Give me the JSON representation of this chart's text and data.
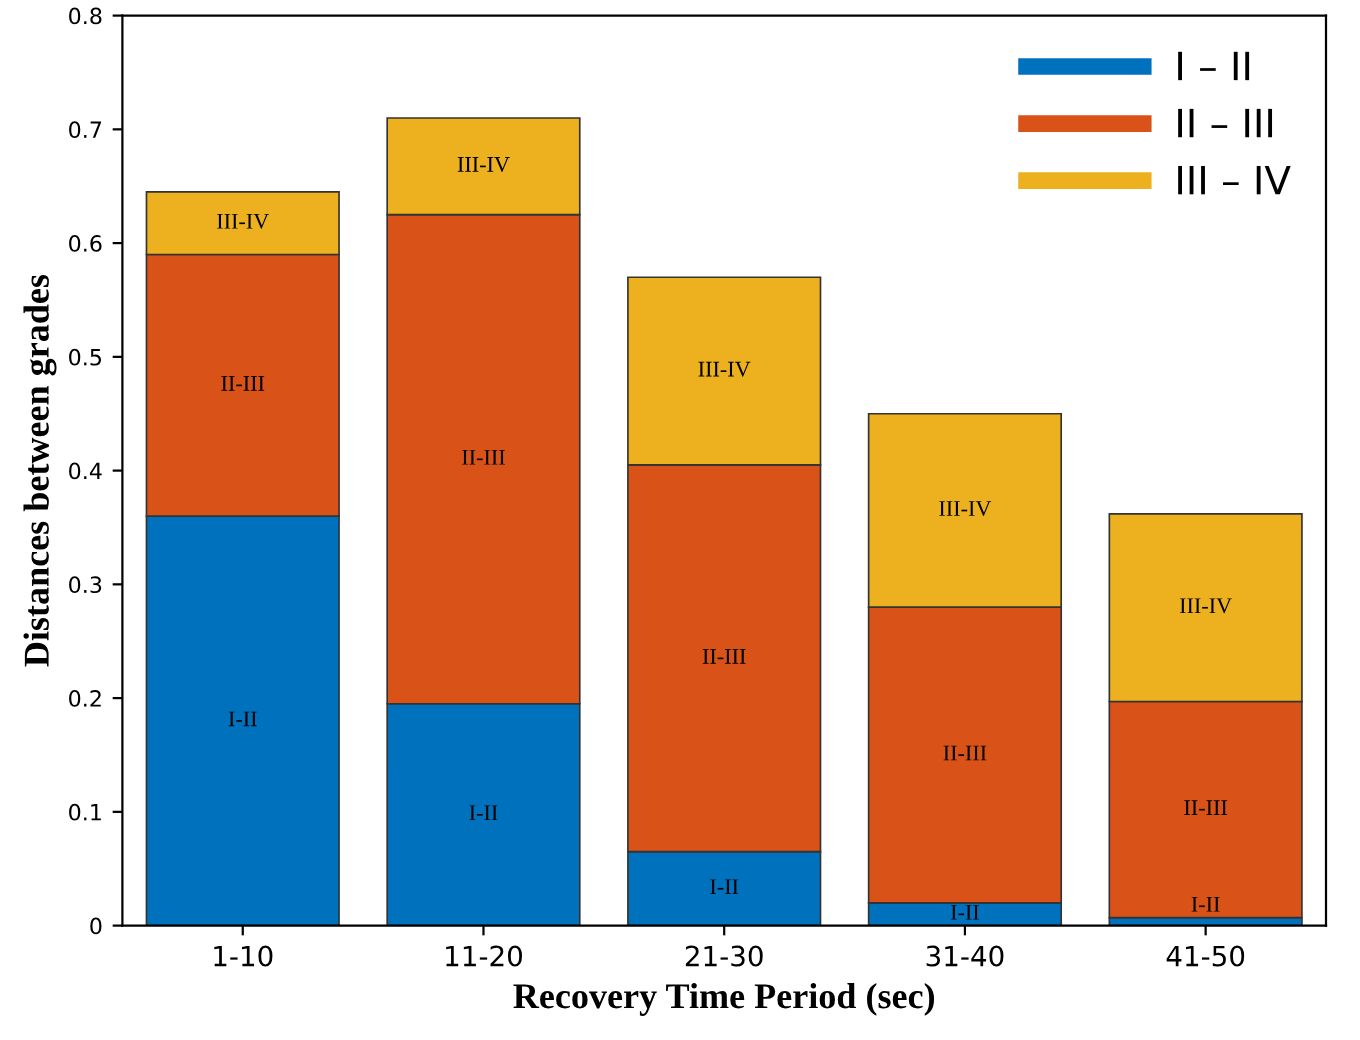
{
  "chart_data": {
    "type": "bar",
    "stacked": true,
    "xlabel": "Recovery Time Period (sec)",
    "ylabel": "Distances between grades",
    "categories": [
      "1-10",
      "11-20",
      "21-30",
      "31-40",
      "41-50"
    ],
    "series": [
      {
        "name": "I – II",
        "color": "#0072bd",
        "values": [
          0.36,
          0.195,
          0.065,
          0.02,
          0.007
        ],
        "value_labels": [
          "I-II",
          "I-II",
          "I-II",
          "I-II",
          "I-II"
        ]
      },
      {
        "name": "II – III",
        "color": "#d95319",
        "values": [
          0.23,
          0.43,
          0.34,
          0.26,
          0.19
        ],
        "value_labels": [
          "II-III",
          "II-III",
          "II-III",
          "II-III",
          "II-III"
        ]
      },
      {
        "name": "III – IV",
        "color": "#edb120",
        "values": [
          0.055,
          0.085,
          0.165,
          0.17,
          0.165
        ],
        "value_labels": [
          "III-IV",
          "III-IV",
          "III-IV",
          "III-IV",
          "III-IV"
        ]
      }
    ],
    "ylim": [
      0,
      0.8
    ],
    "yticks": [
      0,
      0.1,
      0.2,
      0.3,
      0.4,
      0.5,
      0.6,
      0.7,
      0.8
    ],
    "grid": false,
    "legend": "top right"
  }
}
